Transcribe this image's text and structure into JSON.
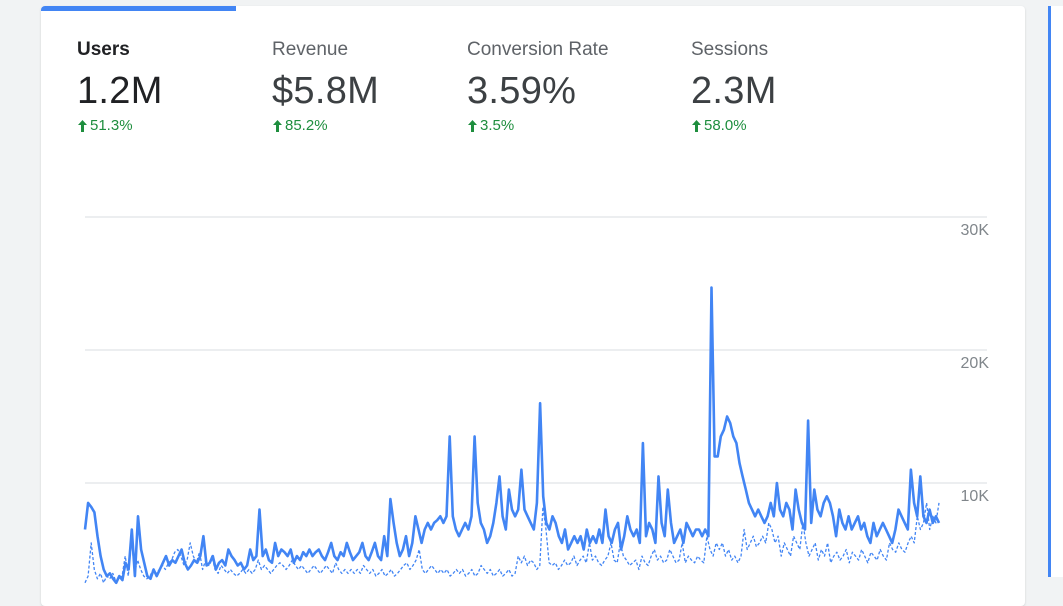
{
  "metrics": [
    {
      "label": "Users",
      "value": "1.2M",
      "delta": "51.3%",
      "active": true
    },
    {
      "label": "Revenue",
      "value": "$5.8M",
      "delta": "85.2%",
      "active": false
    },
    {
      "label": "Conversion Rate",
      "value": "3.59%",
      "delta": "3.5%",
      "active": false
    },
    {
      "label": "Sessions",
      "value": "2.3M",
      "delta": "58.0%",
      "active": false
    }
  ],
  "colors": {
    "accent": "#4285f4",
    "positive": "#1e8e3e",
    "grid": "#dadce0"
  },
  "chart_data": {
    "type": "line",
    "ylim": [
      0,
      30000
    ],
    "y_ticks": [
      "10K",
      "20K",
      "30K"
    ],
    "y_tick_values": [
      10000,
      20000,
      30000
    ],
    "series": [
      {
        "style": "solid",
        "color": "#4285f4",
        "values": [
          6500,
          8500,
          8200,
          7800,
          6000,
          4500,
          3500,
          3000,
          3200,
          2800,
          2500,
          3000,
          2700,
          4000,
          3500,
          6500,
          3000,
          7500,
          5000,
          4000,
          3000,
          2800,
          3500,
          3000,
          3500,
          4000,
          4500,
          3800,
          4200,
          4000,
          4500,
          5000,
          4000,
          3500,
          3800,
          4200,
          4000,
          4500,
          6000,
          3800,
          4000,
          4500,
          3500,
          4000,
          4200,
          3800,
          5000,
          4500,
          4200,
          3800,
          4000,
          3500,
          3800,
          5000,
          4200,
          4500,
          8000,
          4500,
          5000,
          4200,
          4000,
          5500,
          4500,
          5000,
          4800,
          4500,
          5000,
          4000,
          4500,
          4200,
          4800,
          4500,
          5000,
          4500,
          4800,
          5000,
          4500,
          4200,
          4800,
          5500,
          4500,
          4200,
          4800,
          4500,
          5500,
          4800,
          4200,
          4500,
          4800,
          5500,
          4500,
          4200,
          4800,
          5500,
          4500,
          4200,
          6000,
          4500,
          8800,
          7000,
          5500,
          4500,
          5000,
          6000,
          4500,
          5500,
          7500,
          6500,
          5500,
          6500,
          7000,
          6500,
          7000,
          7200,
          7500,
          7000,
          7500,
          13500,
          7500,
          6500,
          6000,
          6500,
          7000,
          6500,
          7500,
          13500,
          8500,
          7000,
          6500,
          5500,
          6000,
          7000,
          8500,
          10500,
          7500,
          6500,
          9500,
          8000,
          7500,
          8000,
          11000,
          8000,
          7500,
          7000,
          6500,
          8500,
          16000,
          9000,
          7000,
          6500,
          7500,
          7000,
          6000,
          5500,
          6500,
          5000,
          5500,
          6000,
          5500,
          6000,
          5000,
          6500,
          5500,
          6000,
          5500,
          6500,
          5500,
          8000,
          6000,
          5500,
          6500,
          7000,
          5000,
          6000,
          7500,
          6500,
          6000,
          6500,
          5500,
          13000,
          6000,
          7000,
          6500,
          5500,
          10500,
          7000,
          6000,
          9500,
          7000,
          5500,
          6000,
          6500,
          5500,
          7000,
          6500,
          6000,
          6500,
          6500,
          6000,
          6500,
          6000,
          24700,
          12000,
          12000,
          13500,
          14000,
          15000,
          14500,
          13500,
          13000,
          11500,
          10500,
          9500,
          8500,
          8000,
          7500,
          8000,
          7500,
          7000,
          7500,
          8500,
          7500,
          10000,
          8000,
          7500,
          8500,
          8000,
          6500,
          9500,
          8000,
          7000,
          6500,
          14700,
          7000,
          9500,
          8000,
          7500,
          8500,
          9000,
          8500,
          7500,
          6000,
          8000,
          7000,
          6500,
          7500,
          6500,
          7000,
          7500,
          6500,
          7000,
          6000,
          5500,
          7000,
          6000,
          6500,
          7000,
          6500,
          6000,
          5500,
          6500,
          8000,
          7500,
          7000,
          6500,
          11000,
          8500,
          7500,
          10500,
          7500,
          7000,
          8000,
          7000,
          7500,
          7000
        ]
      },
      {
        "style": "dashed",
        "color": "#4285f4",
        "values": [
          2500,
          3000,
          5500,
          3500,
          2800,
          3200,
          2500,
          3000,
          2800,
          3200,
          2600,
          2800,
          3000,
          4500,
          3000,
          6000,
          3200,
          4200,
          3500,
          3000,
          2800,
          3000,
          3500,
          3200,
          3500,
          3800,
          3500,
          4000,
          4200,
          4800,
          5000,
          4500,
          3800,
          4200,
          5500,
          4500,
          4000,
          4800,
          3500,
          4200,
          3800,
          4500,
          3500,
          3200,
          3800,
          3500,
          3200,
          3500,
          3200,
          3000,
          3200,
          3500,
          3200,
          3500,
          3200,
          3500,
          4200,
          3500,
          3800,
          3500,
          3200,
          3500,
          3800,
          4000,
          3800,
          3500,
          3800,
          4200,
          3800,
          3500,
          3800,
          3500,
          3200,
          3500,
          3800,
          3500,
          3200,
          3500,
          3800,
          3500,
          3200,
          4000,
          3500,
          3200,
          3500,
          3200,
          3500,
          3200,
          3500,
          3200,
          3800,
          3500,
          3200,
          3500,
          3000,
          3200,
          3500,
          3000,
          3200,
          3500,
          3000,
          3200,
          3500,
          3800,
          4000,
          3500,
          3800,
          4200,
          5000,
          3500,
          3200,
          3500,
          3800,
          3500,
          3200,
          3500,
          3200,
          3500,
          3000,
          3200,
          3500,
          3200,
          3500,
          3000,
          3200,
          3500,
          3000,
          3200,
          3800,
          3500,
          3200,
          3500,
          3000,
          3200,
          3500,
          3000,
          3200,
          3500,
          3000,
          3200,
          4500,
          4000,
          4500,
          3800,
          4200,
          4000,
          3500,
          3800,
          8200,
          6500,
          4000,
          3800,
          4000,
          3500,
          3800,
          4200,
          3800,
          4000,
          4500,
          3800,
          4200,
          4500,
          4000,
          5500,
          4200,
          4500,
          4000,
          3800,
          4200,
          4500,
          5500,
          4200,
          4000,
          5500,
          4500,
          4200,
          3800,
          4000,
          4200,
          3500,
          4500,
          4000,
          3800,
          4500,
          5000,
          4200,
          4500,
          4000,
          4200,
          5000,
          4500,
          4000,
          4200,
          5500,
          4000,
          4500,
          4200,
          4000,
          4500,
          4200,
          4000,
          6000,
          5000,
          4500,
          5500,
          5000,
          5500,
          4500,
          5000,
          4200,
          4500,
          4000,
          4500,
          6500,
          5000,
          5500,
          6000,
          5200,
          5500,
          6000,
          5500,
          7000,
          6500,
          5500,
          6000,
          4500,
          5500,
          5000,
          4500,
          6000,
          5500,
          5000,
          7000,
          5500,
          4500,
          5000,
          5500,
          4200,
          5000,
          4500,
          5500,
          4000,
          4500,
          4800,
          4200,
          4500,
          5000,
          4000,
          4800,
          4500,
          4200,
          5000,
          4500,
          4000,
          4800,
          4500,
          4200,
          5000,
          4500,
          4200,
          5500,
          5000,
          4800,
          5500,
          5000,
          4800,
          5500,
          6000,
          5500,
          7500,
          6500,
          7000,
          8500,
          6500,
          7500,
          7000,
          8500
        ]
      }
    ]
  }
}
